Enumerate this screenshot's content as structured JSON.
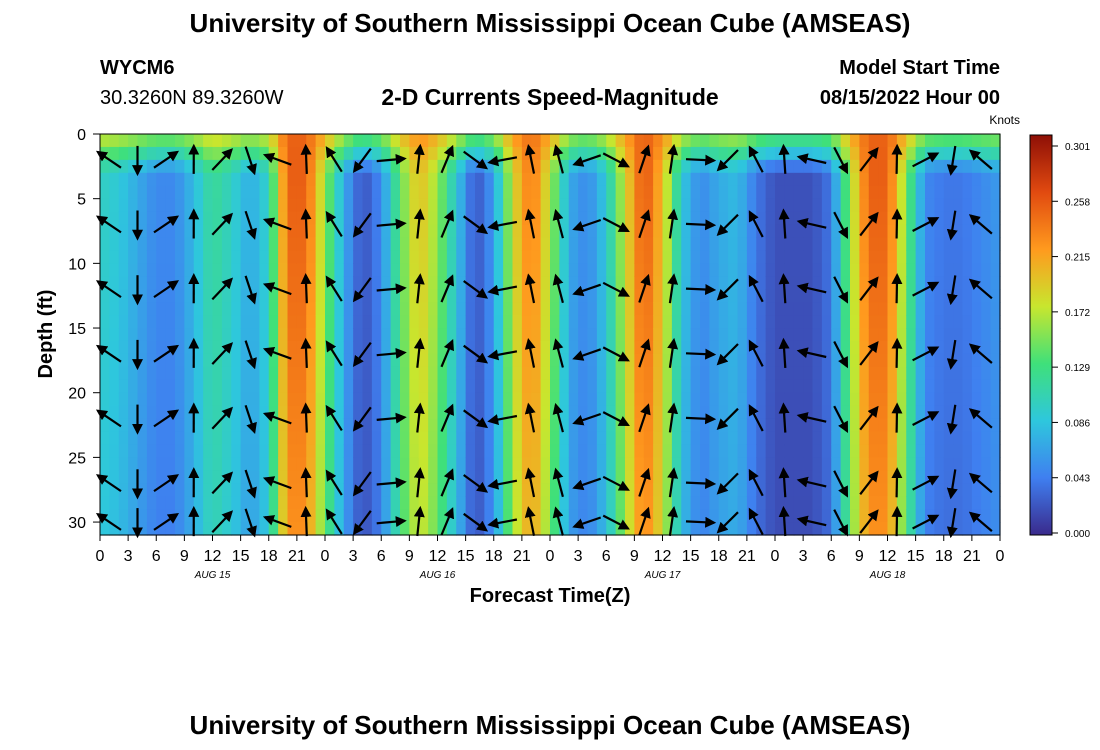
{
  "page": {
    "title": "University of Southern Mississippi Ocean Cube (AMSEAS)",
    "footer_title": "University of Southern Mississippi Ocean Cube (AMSEAS)",
    "station_id": "WYCM6",
    "coords": "30.3260N  89.3260W",
    "model_start_label": "Model Start Time",
    "model_start_value": "08/15/2022 Hour 00"
  },
  "chart_data": {
    "type": "heatmap",
    "title": "2-D Currents Speed-Magnitude",
    "xlabel": "Forecast Time(Z)",
    "ylabel": "Depth (ft)",
    "x_range_hours": [
      0,
      96
    ],
    "y_range_ft": [
      0,
      31
    ],
    "x_ticks": [
      "0",
      "3",
      "6",
      "9",
      "12",
      "15",
      "18",
      "21",
      "0",
      "3",
      "6",
      "9",
      "12",
      "15",
      "18",
      "21",
      "0",
      "3",
      "6",
      "9",
      "12",
      "15",
      "18",
      "21",
      "0",
      "3",
      "6",
      "9",
      "12",
      "15",
      "18",
      "21",
      "0"
    ],
    "y_ticks": [
      0,
      5,
      10,
      15,
      20,
      25,
      30
    ],
    "day_labels": [
      {
        "label": "AUG 15",
        "hour": 12
      },
      {
        "label": "AUG 16",
        "hour": 36
      },
      {
        "label": "AUG 17",
        "hour": 60
      },
      {
        "label": "AUG 18",
        "hour": 84
      }
    ],
    "colorbar": {
      "unit": "Knots",
      "ticks": [
        "0.301",
        "0.258",
        "0.215",
        "0.172",
        "0.129",
        "0.086",
        "0.043",
        "0.000"
      ],
      "range": [
        0.0,
        0.301
      ],
      "colors": [
        "#3a2a8c",
        "#3f7ff0",
        "#2ec7dd",
        "#3fe07a",
        "#c8e62e",
        "#ff9a1e",
        "#e14a10",
        "#8e0f06"
      ]
    },
    "speed_profile": {
      "hours": [
        0,
        2,
        4,
        6,
        8,
        10,
        12,
        14,
        16,
        18,
        20,
        22,
        24,
        26,
        28,
        30,
        32,
        34,
        36,
        38,
        40,
        42,
        44,
        46,
        48,
        50,
        52,
        54,
        56,
        58,
        60,
        62,
        64,
        66,
        68,
        70,
        72,
        74,
        76,
        78,
        80,
        82,
        84,
        86,
        88,
        90,
        92,
        94,
        96
      ],
      "knots": [
        0.1,
        0.09,
        0.07,
        0.05,
        0.05,
        0.08,
        0.12,
        0.1,
        0.07,
        0.1,
        0.25,
        0.25,
        0.16,
        0.07,
        0.02,
        0.05,
        0.14,
        0.2,
        0.16,
        0.09,
        0.02,
        0.06,
        0.18,
        0.24,
        0.17,
        0.07,
        0.05,
        0.09,
        0.18,
        0.26,
        0.2,
        0.09,
        0.05,
        0.07,
        0.08,
        0.04,
        0.02,
        0.02,
        0.02,
        0.04,
        0.16,
        0.25,
        0.25,
        0.15,
        0.05,
        0.04,
        0.04,
        0.05,
        0.06
      ]
    }
  }
}
